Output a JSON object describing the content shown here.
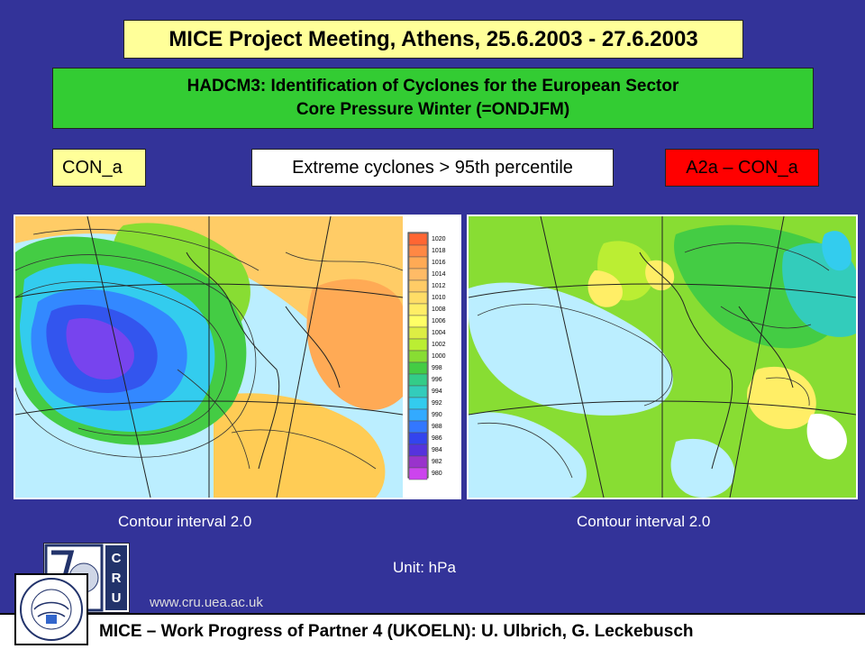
{
  "header": {
    "title": "MICE Project Meeting, Athens, 25.6.2003 - 27.6.2003",
    "subtitle_line1": "HADCM3: Identification of Cyclones for the European Sector",
    "subtitle_line2": "Core Pressure Winter (=ONDJFM)"
  },
  "labels": {
    "left": "CON_a",
    "middle": "Extreme cyclones > 95th percentile",
    "right": "A2a – CON_a"
  },
  "maps": {
    "legend_values": [
      "1020",
      "1018",
      "1016",
      "1014",
      "1012",
      "1010",
      "1008",
      "1006",
      "1004",
      "1002",
      "1000",
      "998",
      "996",
      "994",
      "992",
      "990",
      "988",
      "986",
      "984",
      "982",
      "980"
    ],
    "legend_colors": [
      "#ff6633",
      "#ff8844",
      "#ffaa55",
      "#ffbb66",
      "#ffcc66",
      "#ffdd66",
      "#ffee66",
      "#ffff66",
      "#ddee44",
      "#bbee33",
      "#88dd33",
      "#44cc44",
      "#33cc88",
      "#33ccbb",
      "#33ccee",
      "#33aaff",
      "#3377ff",
      "#3344ee",
      "#5533dd",
      "#9933cc",
      "#cc44ee"
    ]
  },
  "captions": {
    "contour_left": "Contour interval 2.0",
    "contour_right": "Contour interval 2.0",
    "unit": "Unit: hPa",
    "url": "www.cru.uea.ac.uk"
  },
  "footer": {
    "text": "MICE – Work Progress of Partner 4 (UKOELN): U. Ulbrich, G. Leckebusch"
  },
  "logos": {
    "cru_letters": "CRU",
    "igm_text": "IGM – Bereich Meteorologie – Universität zu Köln"
  }
}
